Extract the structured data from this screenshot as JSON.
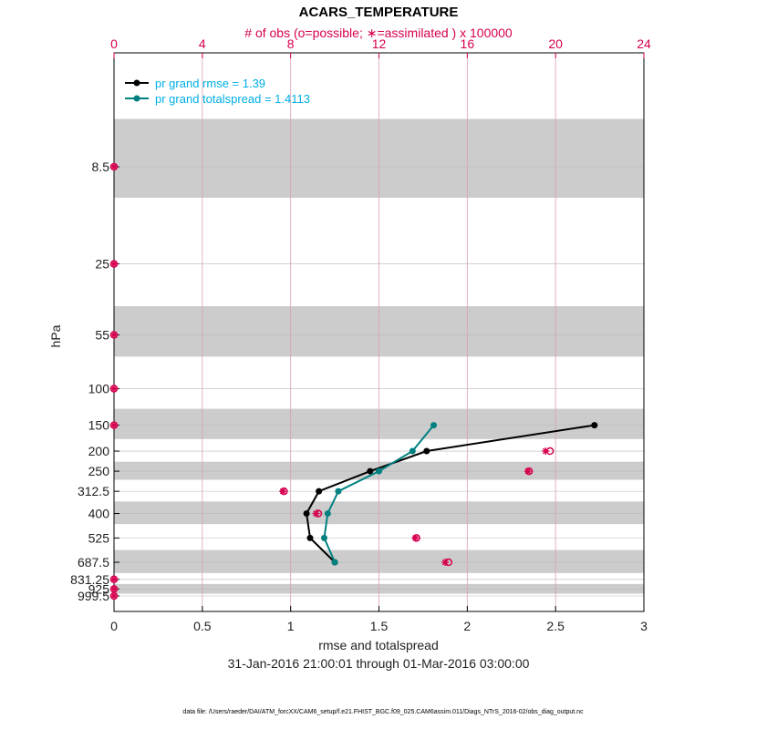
{
  "chart_data": {
    "type": "line",
    "title": "ACARS_TEMPERATURE",
    "top_axis_label": "# of obs (o=possible; ∗=assimilated ) x 100000",
    "top_axis_ticks": [
      "0",
      "4",
      "8",
      "12",
      "16",
      "20",
      "24"
    ],
    "xlim": [
      0,
      3
    ],
    "x_ticks": [
      "0",
      "0.5",
      "1",
      "1.5",
      "2",
      "2.5",
      "3"
    ],
    "xlabel": "rmse and totalspread",
    "ylabel": "hPa",
    "y_levels": [
      8.5,
      25,
      55,
      100,
      150,
      200,
      250,
      312.5,
      400,
      525,
      687.5,
      831.25,
      925,
      999.5
    ],
    "y_tick_labels": [
      "8.5",
      "25",
      "55",
      "100",
      "150",
      "200",
      "250",
      "312.5",
      "400",
      "525",
      "687.5",
      "831.25",
      "925",
      "999.5"
    ],
    "shaded_layers": [
      [
        5,
        12
      ],
      [
        40,
        70
      ],
      [
        125,
        175
      ],
      [
        225,
        275
      ],
      [
        350,
        450
      ],
      [
        600,
        775
      ],
      [
        875,
        975
      ]
    ],
    "date_range": "31-Jan-2016 21:00:01 through 01-Mar-2016 03:00:00",
    "footer": "data file: /Users/raeder/DAI/ATM_forcXX/CAM6_setup/f.e21.FHIST_BGC.f09_025.CAM6assim.011/Diags_NTrS_2016-02/obs_diag_output.nc",
    "series": [
      {
        "name": "pr grand rmse",
        "legend": "pr grand rmse = 1.39",
        "color": "#000000",
        "points": [
          [
            2.72,
            150
          ],
          [
            1.77,
            200
          ],
          [
            1.45,
            250
          ],
          [
            1.16,
            312.5
          ],
          [
            1.09,
            400
          ],
          [
            1.11,
            525
          ],
          [
            1.25,
            687.5
          ]
        ]
      },
      {
        "name": "pr grand totalspread",
        "legend": "pr grand totalspread = 1.4113",
        "color": "#008080",
        "points": [
          [
            1.81,
            150
          ],
          [
            1.69,
            200
          ],
          [
            1.5,
            250
          ],
          [
            1.27,
            312.5
          ],
          [
            1.21,
            400
          ],
          [
            1.19,
            525
          ],
          [
            1.25,
            687.5
          ]
        ]
      }
    ],
    "obs_counts": {
      "color": "#d6004f",
      "possible": [
        [
          0,
          8.5
        ],
        [
          0,
          25
        ],
        [
          0,
          55
        ],
        [
          0,
          100
        ],
        [
          0,
          150
        ],
        [
          19.75,
          200
        ],
        [
          18.8,
          250
        ],
        [
          7.7,
          312.5
        ],
        [
          9.25,
          400
        ],
        [
          13.7,
          525
        ],
        [
          15.15,
          687.5
        ],
        [
          0,
          831.25
        ],
        [
          0,
          925
        ],
        [
          0,
          999.5
        ]
      ],
      "assimilated": [
        [
          0,
          8.5
        ],
        [
          0,
          25
        ],
        [
          0,
          55
        ],
        [
          0,
          100
        ],
        [
          0,
          150
        ],
        [
          19.55,
          200
        ],
        [
          18.75,
          250
        ],
        [
          7.65,
          312.5
        ],
        [
          9.15,
          400
        ],
        [
          13.65,
          525
        ],
        [
          15.0,
          687.5
        ],
        [
          0,
          831.25
        ],
        [
          0,
          925
        ],
        [
          0,
          999.5
        ]
      ]
    }
  }
}
